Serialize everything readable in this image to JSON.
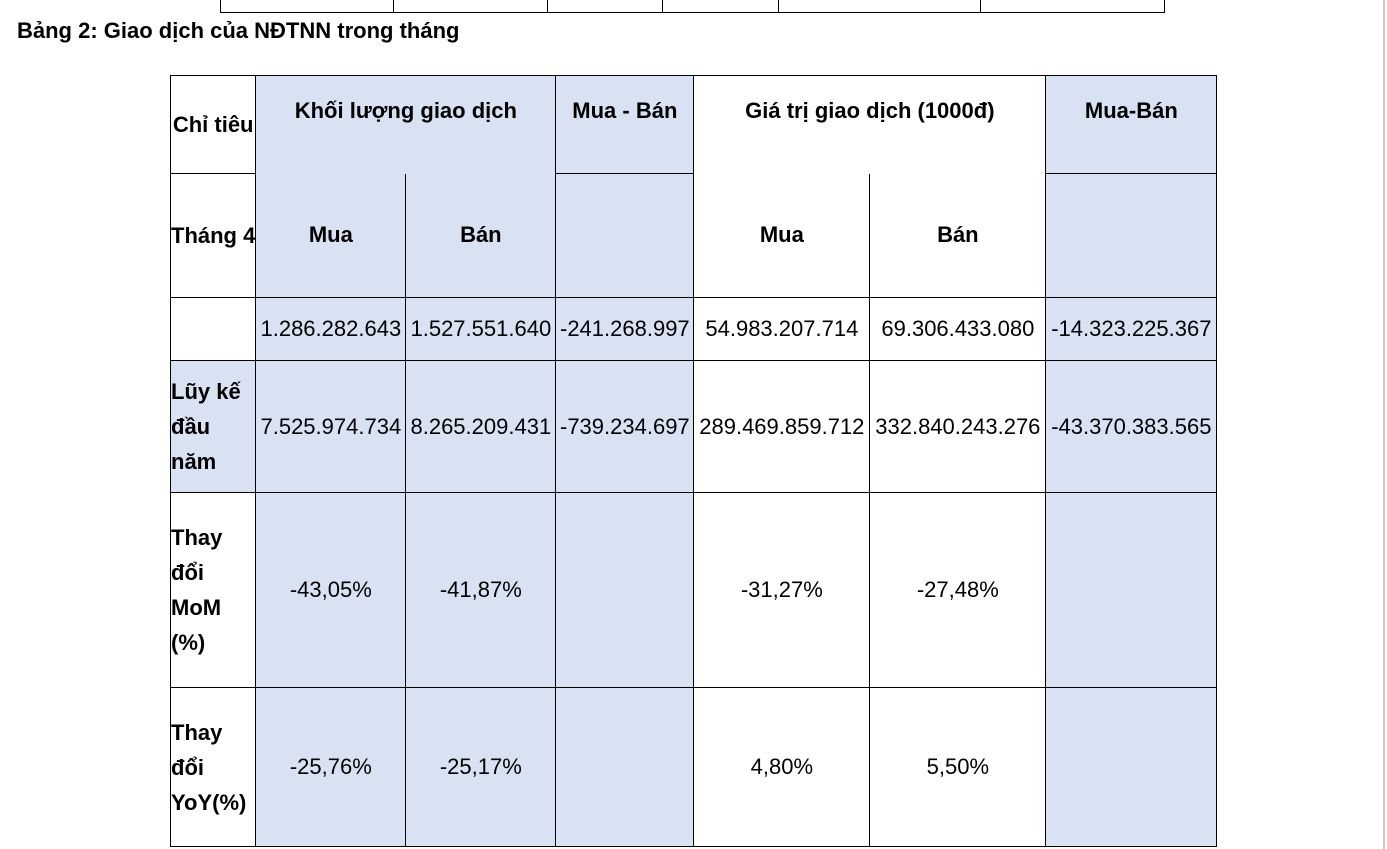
{
  "title": "Bảng 2: Giao dịch của NĐTNN trong tháng",
  "table": {
    "header": [
      [
        "Chỉ tiêu",
        "Khối lượng giao dịch",
        "Mua - Bán",
        "Giá trị giao dịch (1000đ)",
        "Mua-Bán"
      ],
      [
        "Tháng 4",
        "Mua",
        "Bán",
        "Mua",
        "Bán"
      ]
    ],
    "rows": [
      {
        "values": [
          "1.286.282.643",
          "1.527.551.640",
          "-241.268.997",
          "54.983.207.714",
          "69.306.433.080",
          "-14.323.225.367"
        ]
      },
      {
        "label": "Lũy kế đầu năm",
        "values": [
          "7.525.974.734",
          "8.265.209.431",
          "-739.234.697",
          "289.469.859.712",
          "332.840.243.276",
          "-43.370.383.565"
        ]
      },
      {
        "label": "Thay đổi MoM (%)",
        "values": [
          "-43,05%",
          "-41,87%",
          "-31,27%",
          "-27,48%"
        ]
      },
      {
        "label": "Thay đổi YoY(%)",
        "values": [
          "-25,76%",
          "-25,17%",
          "4,80%",
          "5,50%"
        ]
      }
    ]
  }
}
